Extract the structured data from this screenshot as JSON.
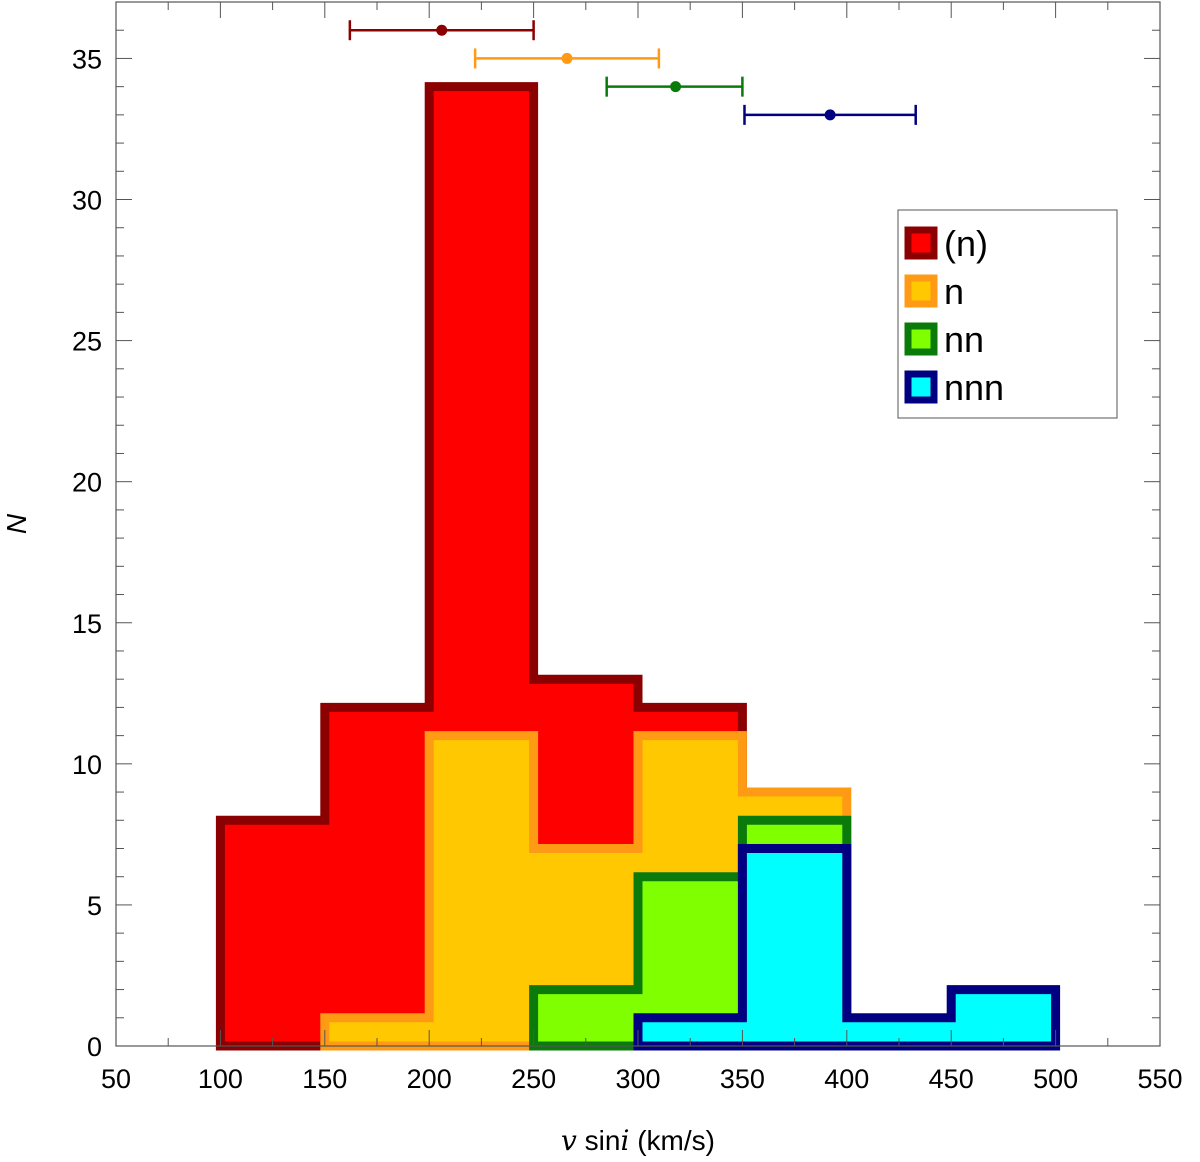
{
  "chart_data": {
    "type": "bar",
    "xlabel": {
      "italic": "v",
      "mid": " sin",
      "italic2": "i",
      "tail": " (km/s)"
    },
    "ylabel": "N",
    "xlim": [
      50,
      550
    ],
    "ylim": [
      0,
      37
    ],
    "xticks": [
      50,
      100,
      150,
      200,
      250,
      300,
      350,
      400,
      450,
      500,
      550
    ],
    "yticks": [
      0,
      5,
      10,
      15,
      20,
      25,
      30,
      35
    ],
    "bin_edges": [
      100,
      150,
      200,
      250,
      300,
      350,
      400,
      450,
      500
    ],
    "grid": false,
    "legend_position": "upper right",
    "series": [
      {
        "name": "(n)",
        "edge": "#8b0000",
        "fill": "#ff0000",
        "counts": [
          8,
          12,
          34,
          13,
          12,
          0,
          0,
          0
        ]
      },
      {
        "name": "n",
        "edge": "#ff9a14",
        "fill": "#ffc800",
        "counts": [
          0,
          1,
          11,
          7,
          11,
          9,
          0,
          0
        ]
      },
      {
        "name": "nn",
        "edge": "#0a7a0a",
        "fill": "#80ff00",
        "counts": [
          0,
          0,
          0,
          2,
          6,
          8,
          0,
          0
        ]
      },
      {
        "name": "nnn",
        "edge": "#000080",
        "fill": "#00ffff",
        "counts": [
          0,
          0,
          0,
          0,
          1,
          7,
          1,
          2
        ]
      }
    ],
    "error_bars": [
      {
        "series": "(n)",
        "color": "#8b0000",
        "mean": 206,
        "low": 162,
        "high": 250,
        "y": 36
      },
      {
        "series": "n",
        "color": "#ff9a14",
        "mean": 266,
        "low": 222,
        "high": 310,
        "y": 35
      },
      {
        "series": "nn",
        "color": "#0a7a0a",
        "mean": 318,
        "low": 285,
        "high": 350,
        "y": 34
      },
      {
        "series": "nnn",
        "color": "#000080",
        "mean": 392,
        "low": 351,
        "high": 433,
        "y": 33
      }
    ]
  }
}
